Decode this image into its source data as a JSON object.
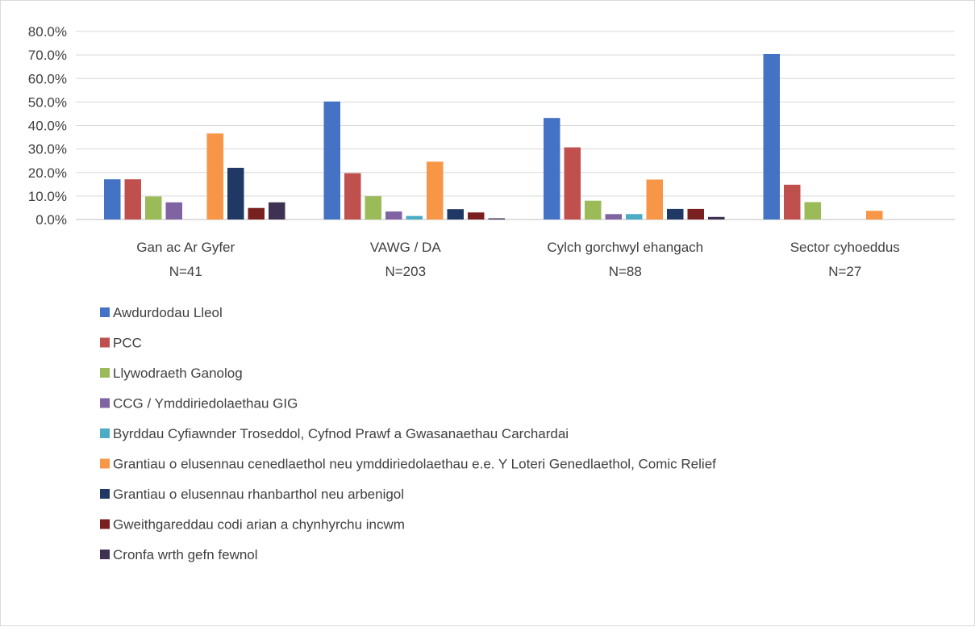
{
  "chart_data": {
    "type": "bar",
    "categories": [
      [
        "Gan ac Ar Gyfer",
        "N=41"
      ],
      [
        "VAWG / DA",
        "N=203"
      ],
      [
        "Cylch gorchwyl ehangach",
        "N=88"
      ],
      [
        "Sector cyhoeddus",
        "N=27"
      ]
    ],
    "ylim": [
      0,
      80
    ],
    "yticks": [
      "0.0%",
      "10.0%",
      "20.0%",
      "30.0%",
      "40.0%",
      "50.0%",
      "60.0%",
      "70.0%",
      "80.0%"
    ],
    "grid": true,
    "legend_position": "bottom",
    "series": [
      {
        "name": "Awdurdodau Lleol",
        "color": "#4472c4",
        "values": [
          17.1,
          50.2,
          43.2,
          70.4
        ]
      },
      {
        "name": "PCC",
        "color": "#c0504d",
        "values": [
          17.1,
          19.7,
          30.7,
          14.8
        ]
      },
      {
        "name": "Llywodraeth Ganolog",
        "color": "#9bbb59",
        "values": [
          9.8,
          9.9,
          8.0,
          7.4
        ]
      },
      {
        "name": "CCG / Ymddiriedolaethau GIG",
        "color": "#8064a2",
        "values": [
          7.3,
          3.4,
          2.3,
          0
        ]
      },
      {
        "name": "Byrddau Cyfiawnder Troseddol, Cyfnod Prawf a Gwasanaethau Carchardai",
        "color": "#4bacc6",
        "values": [
          0,
          1.5,
          2.3,
          0
        ]
      },
      {
        "name": "Grantiau o elusennau cenedlaethol neu ymddiriedolaethau e.e. Y Loteri Genedlaethol, Comic Relief",
        "color": "#f79646",
        "values": [
          36.6,
          24.6,
          17.0,
          3.7
        ]
      },
      {
        "name": "Grantiau o elusennau rhanbarthol neu arbenigol",
        "color": "#1f3864",
        "values": [
          22.0,
          4.4,
          4.5,
          0
        ]
      },
      {
        "name": "Gweithgareddau codi arian a chynhyrchu incwm",
        "color": "#7b2020",
        "values": [
          4.9,
          3.0,
          4.5,
          0
        ]
      },
      {
        "name": "Cronfa wrth gefn fewnol",
        "color": "#3f3151",
        "values": [
          7.3,
          0.5,
          1.1,
          0
        ]
      }
    ]
  }
}
